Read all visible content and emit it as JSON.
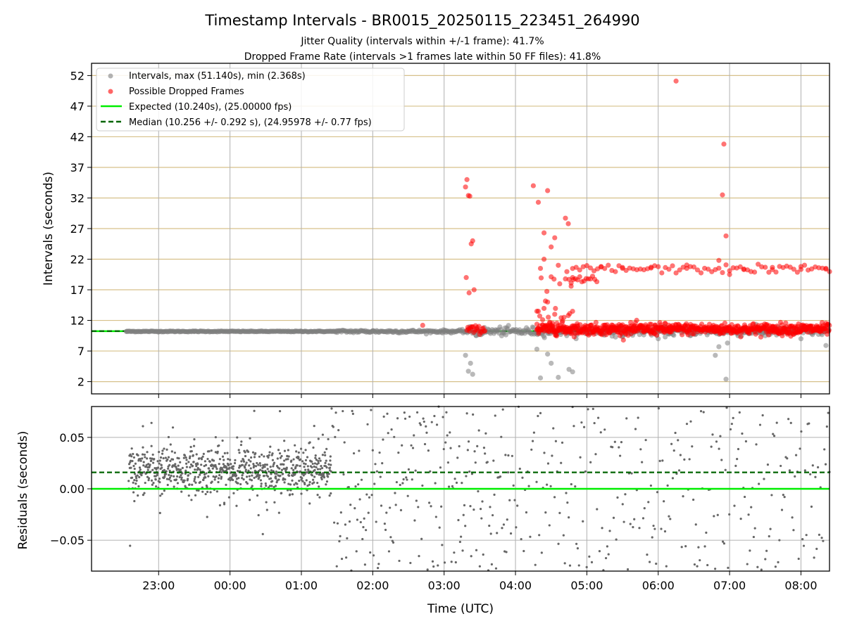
{
  "chart_data": [
    {
      "type": "scatter",
      "title": "Timestamp Intervals - BR0015_20250115_223451_264990",
      "subtitle_lines": [
        "Jitter Quality (intervals within +/-1 frame): 41.7%",
        "Dropped Frame Rate (intervals >1 frames late within 50 FF files): 41.8%"
      ],
      "xlabel": "",
      "ylabel": "Intervals (seconds)",
      "yticks": [
        2,
        7,
        12,
        17,
        22,
        27,
        32,
        37,
        42,
        47,
        52
      ],
      "ylim": [
        0.0,
        54.0
      ],
      "xlim_hours": [
        -1.94,
        8.4
      ],
      "grid": true,
      "horizontal_gridline_color": "#d6c08a",
      "legend_position": "top-left",
      "legend": [
        "Intervals, max (51.140s), min (2.368s)",
        "Possible Dropped Frames",
        "Expected (10.240s), (25.00000 fps)",
        "Median (10.256 +/- 0.292 s), (24.95978 +/- 0.77 fps)"
      ],
      "expected_line": 10.24,
      "median_line": 10.256,
      "colors": {
        "intervals": "#808080",
        "dropped": "#ff0000",
        "expected": "#00ee00",
        "median": "#006400"
      },
      "note": "Most intervals ~10.2 s; dense clusters of dropped frames after 03:20 and again after 04:20 at ~10.5 s and ~20.5 s.",
      "intervals_sample": [
        [
          -1.45,
          10.2
        ],
        [
          -1.0,
          10.2
        ],
        [
          -0.5,
          10.2
        ],
        [
          0.0,
          10.2
        ],
        [
          0.5,
          10.2
        ],
        [
          1.0,
          10.2
        ],
        [
          1.5,
          10.3
        ],
        [
          2.0,
          10.3
        ],
        [
          2.5,
          10.2
        ],
        [
          3.0,
          10.3
        ],
        [
          3.3,
          6.3
        ],
        [
          3.34,
          3.7
        ],
        [
          3.37,
          5.0
        ],
        [
          3.4,
          3.2
        ],
        [
          3.45,
          9.5
        ],
        [
          4.3,
          7.3
        ],
        [
          4.35,
          2.6
        ],
        [
          4.45,
          6.5
        ],
        [
          4.5,
          5.0
        ],
        [
          4.6,
          2.7
        ],
        [
          4.75,
          4.0
        ],
        [
          4.8,
          3.6
        ],
        [
          5.5,
          9.3
        ],
        [
          6.0,
          9.0
        ],
        [
          6.8,
          6.3
        ],
        [
          6.85,
          7.7
        ],
        [
          6.95,
          2.4
        ],
        [
          6.97,
          8.3
        ],
        [
          7.5,
          9.5
        ],
        [
          8.0,
          9.0
        ],
        [
          8.35,
          7.9
        ]
      ],
      "dropped_sample": [
        [
          2.7,
          11.2
        ],
        [
          3.3,
          33.8
        ],
        [
          3.32,
          35.0
        ],
        [
          3.34,
          32.4
        ],
        [
          3.36,
          32.3
        ],
        [
          3.35,
          16.5
        ],
        [
          3.38,
          24.5
        ],
        [
          3.4,
          25.0
        ],
        [
          3.42,
          17.0
        ],
        [
          3.31,
          19.0
        ],
        [
          4.25,
          34.0
        ],
        [
          4.32,
          31.3
        ],
        [
          4.45,
          33.2
        ],
        [
          4.4,
          26.3
        ],
        [
          4.5,
          24.0
        ],
        [
          4.55,
          25.5
        ],
        [
          4.7,
          28.7
        ],
        [
          4.74,
          27.8
        ],
        [
          4.35,
          20.5
        ],
        [
          4.4,
          22.0
        ],
        [
          4.6,
          21.0
        ],
        [
          4.8,
          19.0
        ],
        [
          4.45,
          15.0
        ],
        [
          4.55,
          13.0
        ],
        [
          4.3,
          13.5
        ],
        [
          5.2,
          20.8
        ],
        [
          5.5,
          20.5
        ],
        [
          5.9,
          20.7
        ],
        [
          6.25,
          51.1
        ],
        [
          6.4,
          20.5
        ],
        [
          6.85,
          21.8
        ],
        [
          6.9,
          32.5
        ],
        [
          6.92,
          40.8
        ],
        [
          6.95,
          25.8
        ],
        [
          7.0,
          19.5
        ],
        [
          7.2,
          20.4
        ],
        [
          7.6,
          20.3
        ],
        [
          8.0,
          20.8
        ],
        [
          8.35,
          20.5
        ]
      ]
    },
    {
      "type": "scatter",
      "ylabel": "Residuals (seconds)",
      "xlabel": "Time (UTC)",
      "yticks": [
        -0.05,
        0.0,
        0.05
      ],
      "ytick_labels": [
        "−0.05",
        "0.00",
        "0.05"
      ],
      "ylim": [
        -0.08,
        0.08
      ],
      "xlim_hours": [
        -1.94,
        8.4
      ],
      "xticks_hours": [
        -1,
        0,
        1,
        2,
        3,
        4,
        5,
        6,
        7,
        8
      ],
      "xtick_labels": [
        "23:00",
        "00:00",
        "01:00",
        "02:00",
        "03:00",
        "04:00",
        "05:00",
        "06:00",
        "07:00",
        "08:00"
      ],
      "zero_line": 0.0,
      "median_residual": 0.016,
      "grid": true,
      "colors": {
        "points": "#666666",
        "zero": "#00ee00",
        "median": "#006400"
      },
      "note": "Tight band 0.005-0.035 s from 22:35 to 01:25; widely scattered afterwards across full range."
    }
  ]
}
